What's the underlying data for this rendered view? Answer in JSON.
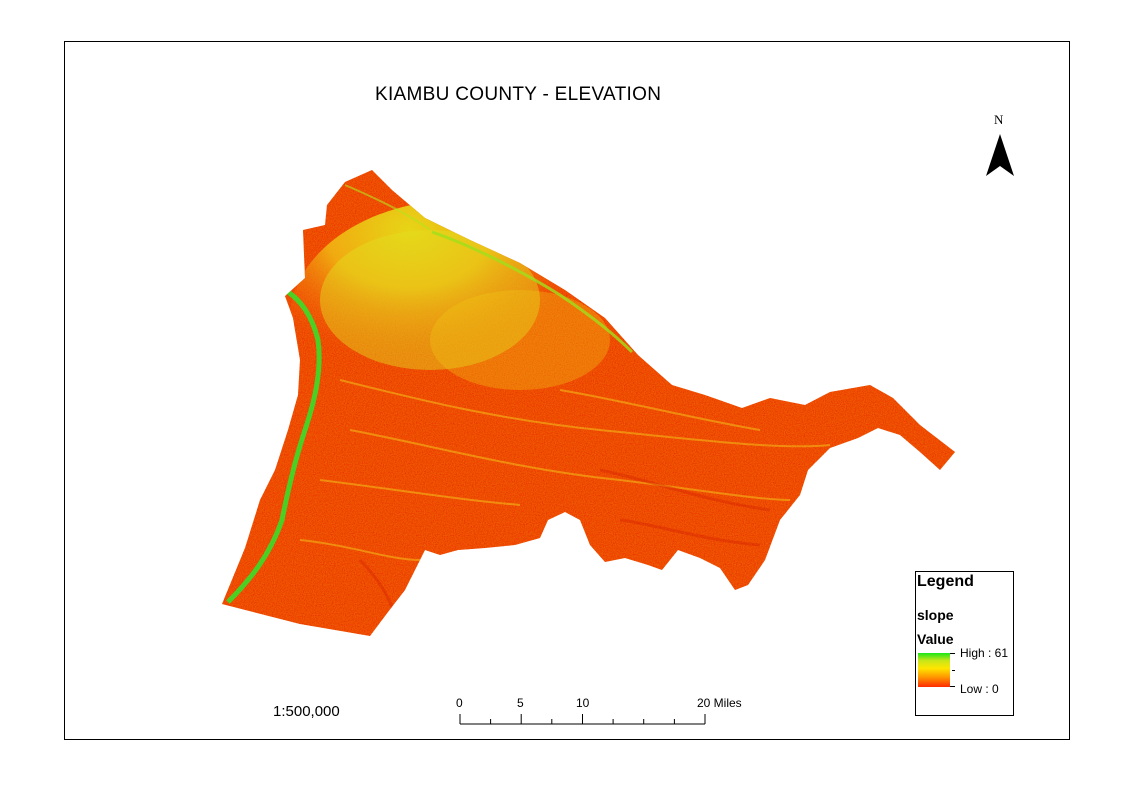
{
  "map": {
    "title": "KIAMBU COUNTY - ELEVATION",
    "north_label": "N",
    "scale_text": "1:500,000",
    "scalebar": {
      "labels": [
        "0",
        "5",
        "10",
        "20 Miles"
      ]
    },
    "legend": {
      "title": "Legend",
      "layer": "slope",
      "field": "Value",
      "high_label": "High : 61",
      "low_label": "Low : 0",
      "ramp_colors": [
        "#19e619",
        "#ffe600",
        "#ff2a00"
      ]
    },
    "icons": [
      "north-arrow-icon"
    ]
  }
}
